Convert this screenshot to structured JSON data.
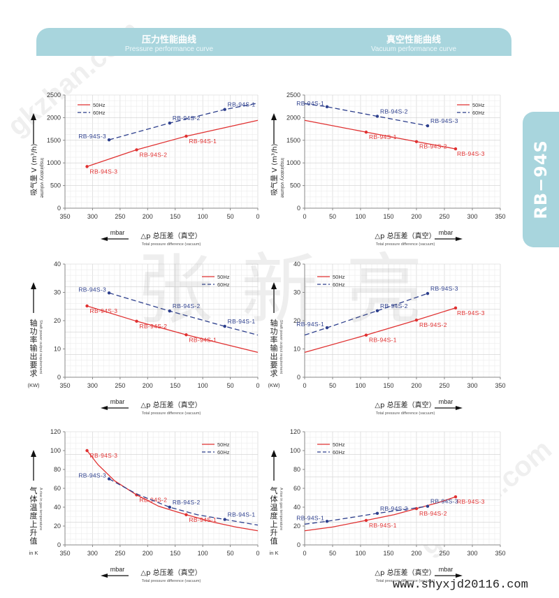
{
  "banner": {
    "left": {
      "zh": "压力性能曲线",
      "en": "Pressure performance curve"
    },
    "right": {
      "zh": "真空性能曲线",
      "en": "Vacuum performance curve"
    }
  },
  "side_tab": "RB−94S",
  "watermark": {
    "main": "张新亮",
    "site": "gkzhan.com"
  },
  "footer_url": "www.shyxjd20116.com",
  "colors": {
    "banner": "#a8d5dd",
    "hz50": "#e03030",
    "hz60": "#2c3e8c",
    "grid": "#dcdcdc"
  },
  "axis_labels": {
    "volume": {
      "zh": "吸气量 V (m³/h)",
      "en": "Inspiratory volume"
    },
    "power": {
      "zh": "轴功率输出要求",
      "en": "Shaft power output requirement",
      "unit": "(KW)"
    },
    "temp": {
      "zh": "气体温度上升值",
      "en": "A rise in gas temperature",
      "unit": "in K"
    },
    "x": {
      "zh": "△p  总压差（真空）",
      "en": "Total pressure difference (vacuum)",
      "unit": "mbar"
    }
  },
  "chart_data": [
    {
      "id": "pressure-volume",
      "type": "line",
      "title": "Pressure performance curve - Inspiratory volume",
      "xlabel": "△p 总压差（真空） mbar",
      "ylabel": "吸气量 V (m³/h)",
      "xlim": [
        350,
        0
      ],
      "ylim": [
        0,
        2500
      ],
      "xticks": [
        350,
        300,
        250,
        200,
        150,
        100,
        50,
        0
      ],
      "yticks": [
        0,
        500,
        1000,
        1500,
        2000,
        2500
      ],
      "grid": true,
      "legend": "top-left",
      "series": [
        {
          "name": "50Hz",
          "style": "solid",
          "x": [
            310,
            220,
            130,
            0
          ],
          "y": [
            920,
            1290,
            1590,
            1940
          ],
          "markers": [
            {
              "x": 310,
              "y": 920,
              "label": "RB-94S-3"
            },
            {
              "x": 220,
              "y": 1290,
              "label": "RB-94S-2"
            },
            {
              "x": 130,
              "y": 1590,
              "label": "RB-94S-1"
            }
          ]
        },
        {
          "name": "60Hz",
          "style": "dashed",
          "x": [
            270,
            160,
            60,
            0
          ],
          "y": [
            1510,
            1880,
            2180,
            2320
          ],
          "markers": [
            {
              "x": 270,
              "y": 1510,
              "label": "RB-94S-3"
            },
            {
              "x": 160,
              "y": 1880,
              "label": "RB-94S-2"
            },
            {
              "x": 60,
              "y": 2180,
              "label": "RB-94S-1"
            }
          ]
        }
      ]
    },
    {
      "id": "vacuum-volume",
      "type": "line",
      "title": "Vacuum performance curve - Inspiratory volume",
      "xlabel": "△p 总压差（真空） mbar",
      "ylabel": "吸气量 V (m³/h)",
      "xlim": [
        0,
        350
      ],
      "ylim": [
        0,
        2500
      ],
      "xticks": [
        0,
        50,
        100,
        150,
        200,
        250,
        300,
        350
      ],
      "yticks": [
        0,
        500,
        1000,
        1500,
        2000,
        2500
      ],
      "grid": true,
      "legend": "top-right",
      "series": [
        {
          "name": "50Hz",
          "style": "solid",
          "x": [
            0,
            110,
            200,
            270
          ],
          "y": [
            1940,
            1680,
            1470,
            1310
          ],
          "markers": [
            {
              "x": 110,
              "y": 1680,
              "label": "RB-94S-1"
            },
            {
              "x": 200,
              "y": 1470,
              "label": "RB-94S-2"
            },
            {
              "x": 270,
              "y": 1310,
              "label": "RB-94S-3"
            }
          ]
        },
        {
          "name": "60Hz",
          "style": "dashed",
          "x": [
            0,
            40,
            130,
            220
          ],
          "y": [
            2310,
            2240,
            2030,
            1820
          ],
          "markers": [
            {
              "x": 40,
              "y": 2240,
              "label": "RB-94S-1"
            },
            {
              "x": 130,
              "y": 2030,
              "label": "RB-94S-2"
            },
            {
              "x": 220,
              "y": 1820,
              "label": "RB-94S-3"
            }
          ]
        }
      ]
    },
    {
      "id": "pressure-power",
      "type": "line",
      "title": "Pressure performance curve - Shaft power",
      "xlabel": "△p 总压差（真空） mbar",
      "ylabel": "轴功率输出要求 (KW)",
      "xlim": [
        350,
        0
      ],
      "ylim": [
        0,
        40
      ],
      "xticks": [
        350,
        300,
        250,
        200,
        150,
        100,
        50,
        0
      ],
      "yticks": [
        0,
        10,
        20,
        30,
        40
      ],
      "grid": true,
      "legend": "top-right",
      "series": [
        {
          "name": "50Hz",
          "style": "solid",
          "x": [
            310,
            220,
            130,
            0
          ],
          "y": [
            25.2,
            19.8,
            15,
            8.8
          ],
          "markers": [
            {
              "x": 310,
              "y": 25.2,
              "label": "RB-94S-3"
            },
            {
              "x": 220,
              "y": 19.8,
              "label": "RB-94S-2"
            },
            {
              "x": 130,
              "y": 15,
              "label": "RB-94S-1"
            }
          ]
        },
        {
          "name": "60Hz",
          "style": "dashed",
          "x": [
            270,
            160,
            60,
            0
          ],
          "y": [
            29.8,
            23.4,
            18,
            14.9
          ],
          "markers": [
            {
              "x": 270,
              "y": 29.8,
              "label": "RB-94S-3"
            },
            {
              "x": 160,
              "y": 23.4,
              "label": "RB-94S-2"
            },
            {
              "x": 60,
              "y": 18,
              "label": "RB-94S-1"
            }
          ]
        }
      ]
    },
    {
      "id": "vacuum-power",
      "type": "line",
      "title": "Vacuum performance curve - Shaft power",
      "xlabel": "△p 总压差（真空） mbar",
      "ylabel": "轴功率输出要求 (KW)",
      "xlim": [
        0,
        350
      ],
      "ylim": [
        0,
        40
      ],
      "xticks": [
        0,
        50,
        100,
        150,
        200,
        250,
        300,
        350
      ],
      "yticks": [
        0,
        10,
        20,
        30,
        40
      ],
      "grid": true,
      "legend": "top-left",
      "series": [
        {
          "name": "50Hz",
          "style": "solid",
          "x": [
            0,
            110,
            200,
            270
          ],
          "y": [
            8.8,
            14.9,
            20.2,
            24.5
          ],
          "markers": [
            {
              "x": 110,
              "y": 14.9,
              "label": "RB-94S-1"
            },
            {
              "x": 200,
              "y": 20.2,
              "label": "RB-94S-2"
            },
            {
              "x": 270,
              "y": 24.5,
              "label": "RB-94S-3"
            }
          ]
        },
        {
          "name": "60Hz",
          "style": "dashed",
          "x": [
            0,
            40,
            130,
            220
          ],
          "y": [
            14.9,
            17.5,
            23.5,
            29.6
          ],
          "markers": [
            {
              "x": 40,
              "y": 17.5,
              "label": "RB-94S-1"
            },
            {
              "x": 130,
              "y": 23.5,
              "label": "RB-94S-2"
            },
            {
              "x": 220,
              "y": 29.6,
              "label": "RB-94S-3"
            }
          ]
        }
      ]
    },
    {
      "id": "pressure-temp",
      "type": "line",
      "title": "Pressure performance curve - Gas temperature rise",
      "xlabel": "△p 总压差（真空） mbar",
      "ylabel": "气体温度上升值 in K",
      "xlim": [
        350,
        0
      ],
      "ylim": [
        0,
        120
      ],
      "xticks": [
        350,
        300,
        250,
        200,
        150,
        100,
        50,
        0
      ],
      "yticks": [
        0,
        20,
        40,
        60,
        80,
        100,
        120
      ],
      "grid": true,
      "legend": "top-right",
      "series": [
        {
          "name": "50Hz",
          "style": "solid",
          "x": [
            310,
            290,
            260,
            220,
            180,
            130,
            80,
            40,
            0
          ],
          "y": [
            100,
            85,
            68,
            53,
            41,
            32,
            24,
            19,
            15
          ],
          "markers": [
            {
              "x": 310,
              "y": 100,
              "label": "RB-94S-3"
            },
            {
              "x": 220,
              "y": 53,
              "label": "RB-94S-2"
            },
            {
              "x": 130,
              "y": 32,
              "label": "RB-94S-1"
            }
          ]
        },
        {
          "name": "60Hz",
          "style": "dashed",
          "x": [
            270,
            220,
            160,
            110,
            60,
            0
          ],
          "y": [
            70,
            54,
            40,
            32,
            27,
            21
          ],
          "markers": [
            {
              "x": 270,
              "y": 70,
              "label": "RB-94S-3"
            },
            {
              "x": 160,
              "y": 40,
              "label": "RB-94S-2"
            },
            {
              "x": 60,
              "y": 27,
              "label": "RB-94S-1"
            }
          ]
        }
      ]
    },
    {
      "id": "vacuum-temp",
      "type": "line",
      "title": "Vacuum performance curve - Gas temperature rise",
      "xlabel": "△p 总压差（真空） mbar",
      "ylabel": "气体温度上升值 in K",
      "xlim": [
        0,
        350
      ],
      "ylim": [
        0,
        120
      ],
      "xticks": [
        0,
        50,
        100,
        150,
        200,
        250,
        300,
        350
      ],
      "yticks": [
        0,
        20,
        40,
        60,
        80,
        100,
        120
      ],
      "grid": true,
      "legend": "top-left",
      "series": [
        {
          "name": "50Hz",
          "style": "solid",
          "x": [
            0,
            50,
            110,
            160,
            200,
            240,
            270
          ],
          "y": [
            15,
            19,
            26,
            32,
            38.5,
            45,
            51
          ],
          "markers": [
            {
              "x": 110,
              "y": 26,
              "label": "RB-94S-1"
            },
            {
              "x": 200,
              "y": 38.5,
              "label": "RB-94S-2"
            },
            {
              "x": 270,
              "y": 51,
              "label": "RB-94S-3"
            }
          ]
        },
        {
          "name": "60Hz",
          "style": "dashed",
          "x": [
            0,
            40,
            130,
            220
          ],
          "y": [
            22,
            25,
            33.5,
            41
          ],
          "markers": [
            {
              "x": 40,
              "y": 25,
              "label": "RB-94S-1"
            },
            {
              "x": 130,
              "y": 33.5,
              "label": "RB-94S-2"
            },
            {
              "x": 220,
              "y": 41,
              "label": "RB-94S-3"
            }
          ]
        }
      ]
    }
  ]
}
